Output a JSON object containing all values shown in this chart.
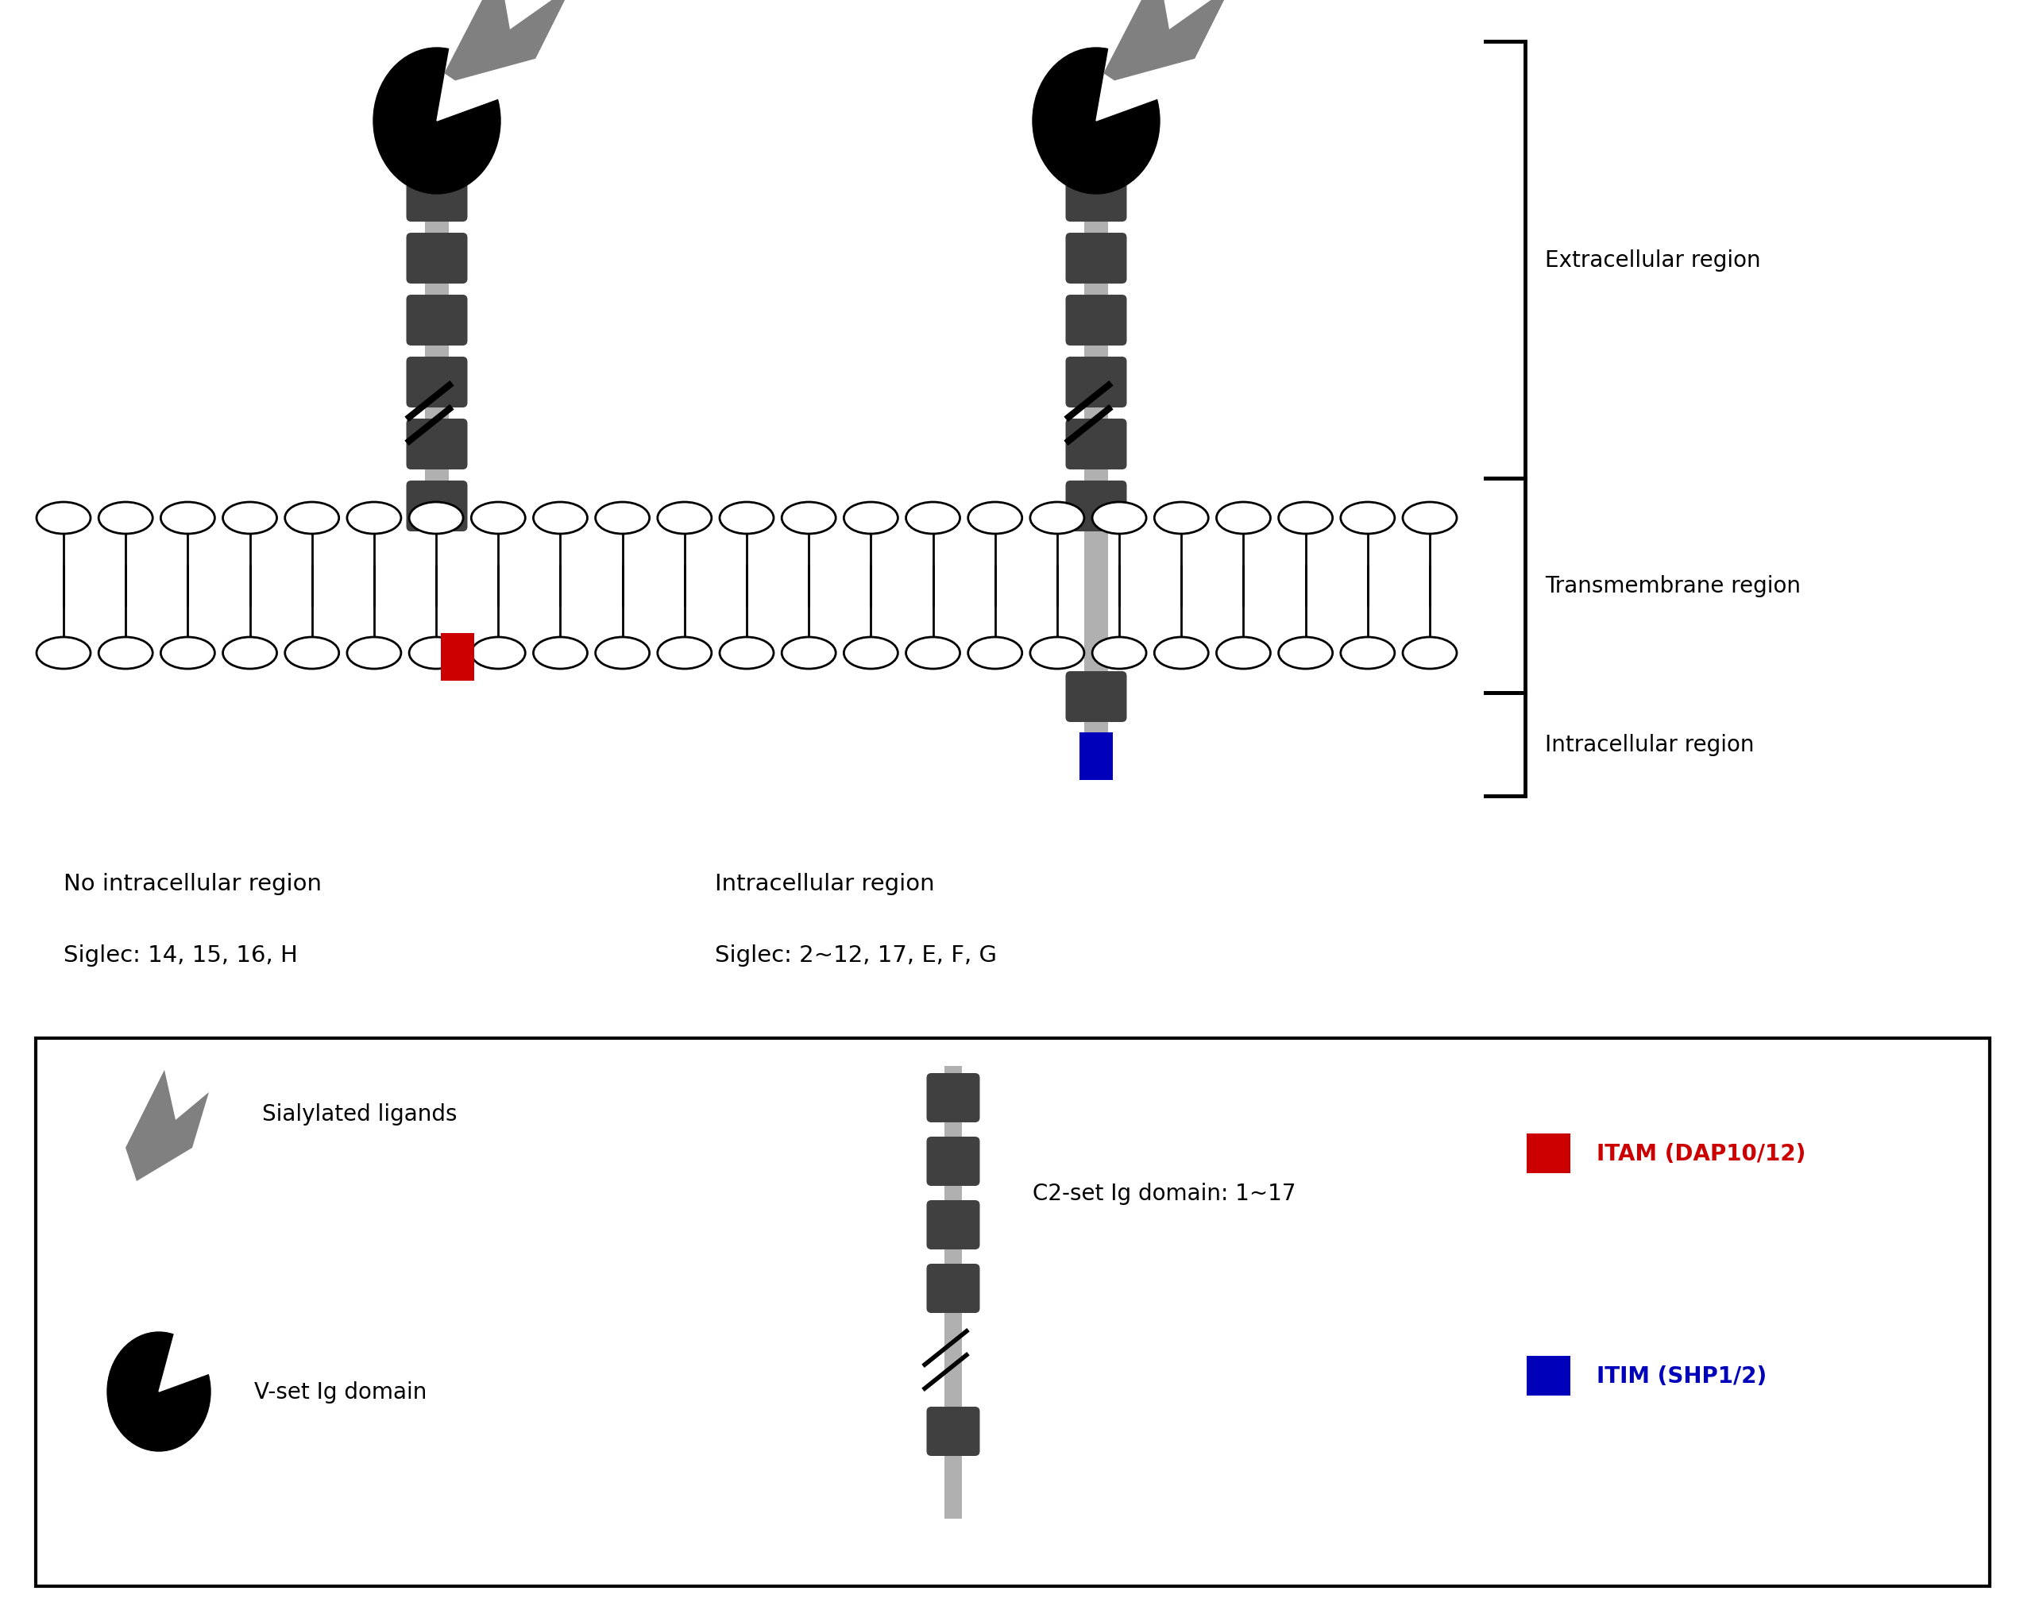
{
  "fig_width": 25.67,
  "fig_height": 20.33,
  "bg_color": "#ffffff",
  "gray_stem_color": "#b0b0b0",
  "dark_bead_color": "#404040",
  "black_color": "#000000",
  "gray_arrow_color": "#808080",
  "red_color": "#cc0000",
  "blue_color": "#0000bb",
  "text_label1": "No intracellular region",
  "text_label2": "Siglec: 14, 15, 16, H",
  "text_label3": "Intracellular region",
  "text_label4": "Siglec: 2~12, 17, E, F, G",
  "region_extracellular": "Extracellular region",
  "region_transmembrane": "Transmembrane region",
  "region_intracellular": "Intracellular region",
  "legend_sialylated": "Sialylated ligands",
  "legend_vset": "V-set Ig domain",
  "legend_c2set": "C2-set Ig domain: 1~17",
  "legend_itam": "ITAM (DAP10/12)",
  "legend_itim": "ITIM (SHP1/2)"
}
